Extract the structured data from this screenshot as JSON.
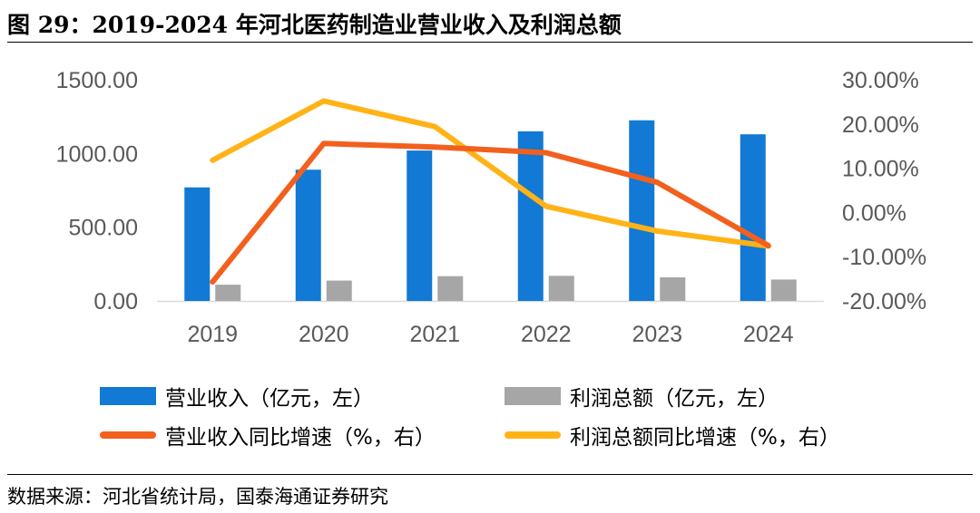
{
  "figure_title": "图 29：2019-2024 年河北医药制造业营业收入及利润总额",
  "source": "数据来源：河北省统计局，国泰海通证券研究",
  "colors": {
    "revenue": "#1279D4",
    "profit": "#A6A6A6",
    "revenue_growth": "#F2601E",
    "profit_growth": "#FFB316",
    "axis_text": "#595959",
    "axis_line": "#D9D9D9"
  },
  "legend": {
    "revenue": "营业收入（亿元，左）",
    "profit": "利润总额（亿元，左）",
    "revenue_growth": "营业收入同比增速（%，右）",
    "profit_growth": "利润总额同比增速（%，右）"
  },
  "chart_data": {
    "type": "bar+line",
    "title": "2019-2024 年河北医药制造业营业收入及利润总额",
    "categories": [
      "2019",
      "2020",
      "2021",
      "2022",
      "2023",
      "2024"
    ],
    "y_left": {
      "min": 0,
      "max": 1500,
      "ticks": [
        "0.00",
        "500.00",
        "1000.00",
        "1500.00"
      ],
      "tick_values": [
        0,
        500,
        1000,
        1500
      ]
    },
    "y_right": {
      "min": -20,
      "max": 30,
      "ticks": [
        "-20.00%",
        "-10.00%",
        "0.00%",
        "10.00%",
        "20.00%",
        "30.00%"
      ],
      "tick_values": [
        -20,
        -10,
        0,
        10,
        20,
        30
      ]
    },
    "series": [
      {
        "name": "营业收入（亿元，左）",
        "kind": "bar",
        "axis": "left",
        "values": [
          770,
          890,
          1020,
          1150,
          1225,
          1130
        ]
      },
      {
        "name": "利润总额（亿元，左）",
        "kind": "bar",
        "axis": "left",
        "values": [
          110,
          138,
          168,
          170,
          160,
          145
        ]
      },
      {
        "name": "营业收入同比增速（%，右）",
        "kind": "line",
        "axis": "right",
        "values": [
          -15.7,
          15.6,
          14.8,
          13.5,
          6.8,
          -7.5
        ]
      },
      {
        "name": "利润总额同比增速（%，右）",
        "kind": "line",
        "axis": "right",
        "values": [
          11.8,
          25.2,
          19.4,
          1.4,
          -4.2,
          -7.6
        ]
      }
    ],
    "legend_position": "bottom",
    "grid": false
  }
}
